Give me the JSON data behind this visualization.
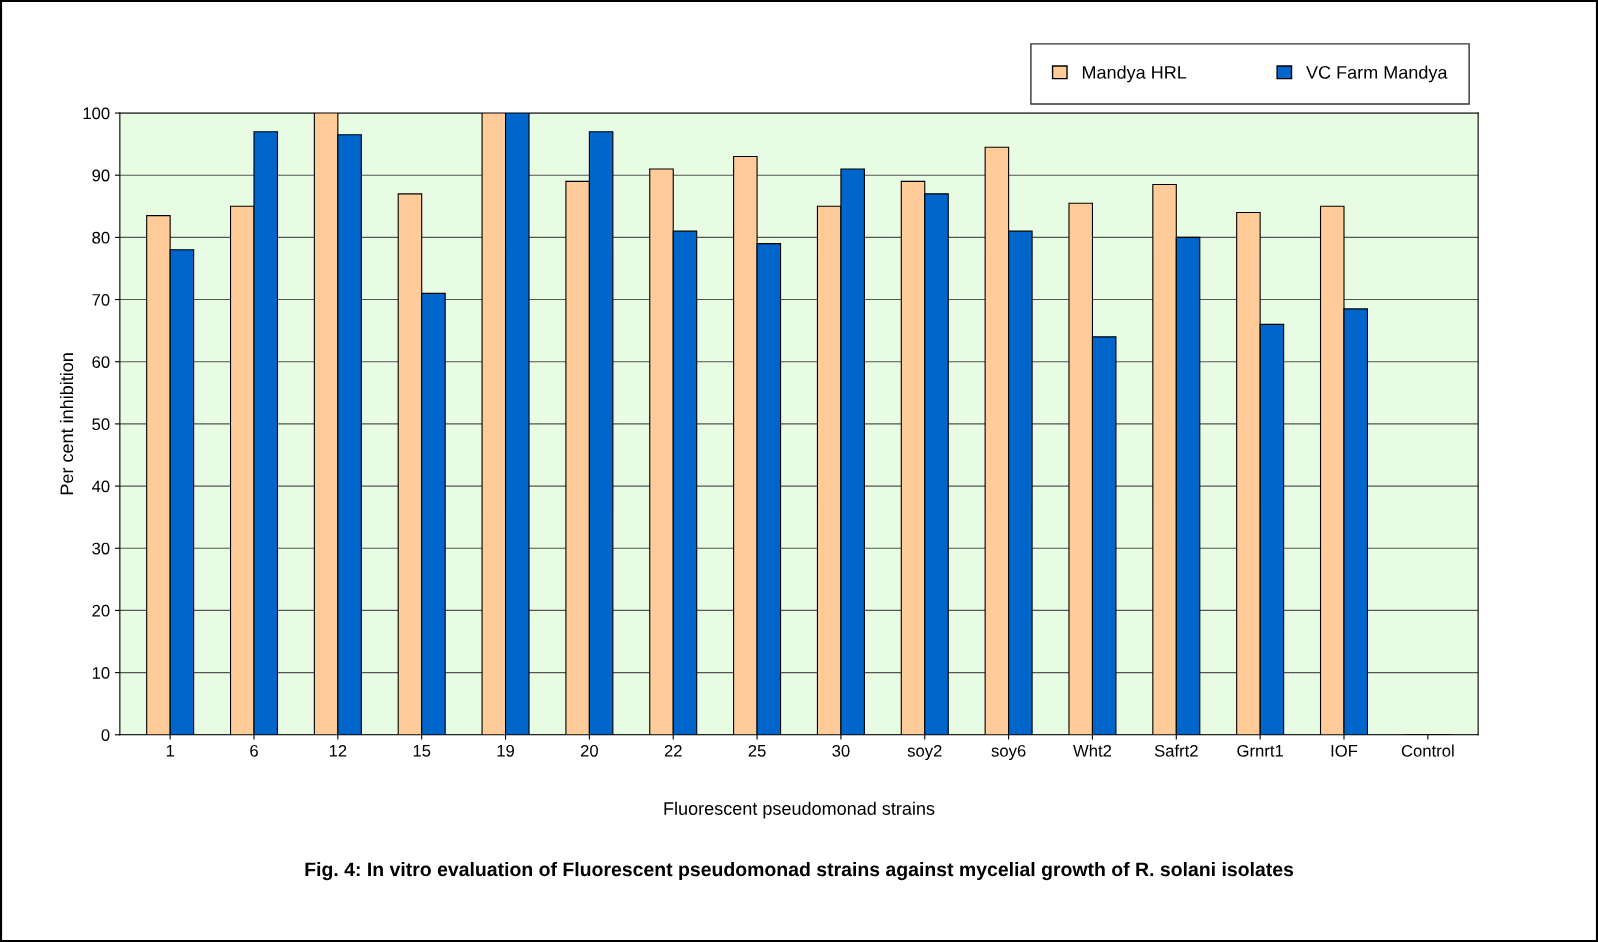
{
  "chart_data": {
    "type": "bar",
    "title": "Fig. 4: In vitro evaluation of Fluorescent pseudomonad strains against mycelial growth of R. solani isolates",
    "xlabel": "Fluorescent pseudomonad strains",
    "ylabel": "Per cent inhibition",
    "categories": [
      "1",
      "6",
      "12",
      "15",
      "19",
      "20",
      "22",
      "25",
      "30",
      "soy2",
      "soy6",
      "Wht2",
      "Safrt2",
      "Grnrt1",
      "IOF",
      "Control"
    ],
    "series": [
      {
        "name": "Mandya HRL",
        "color": "#ffcc99",
        "values": [
          83.5,
          85,
          100,
          87,
          100,
          89,
          91,
          93,
          85,
          89,
          94.5,
          85.5,
          88.5,
          84,
          85,
          0
        ]
      },
      {
        "name": "VC Farm Mandya",
        "color": "#0066cc",
        "values": [
          78,
          97,
          96.5,
          71,
          100,
          97,
          81,
          79,
          91,
          87,
          81,
          64,
          80,
          66,
          68.5,
          0
        ]
      }
    ],
    "ylim": [
      0,
      100
    ],
    "yticks": [
      0,
      10,
      20,
      30,
      40,
      50,
      60,
      70,
      80,
      90,
      100
    ],
    "grid": "y",
    "legend": "top right"
  }
}
